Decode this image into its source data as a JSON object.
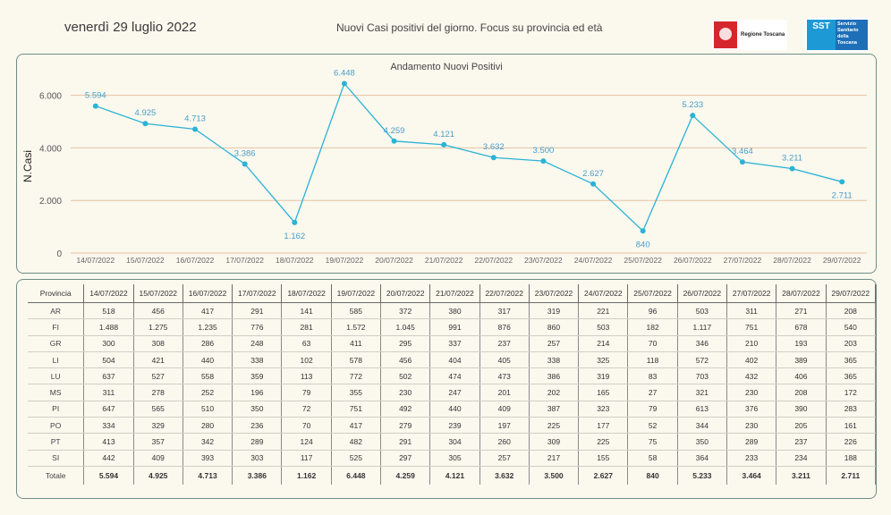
{
  "header": {
    "date": "venerdì 29 luglio 2022",
    "title": "Nuovi Casi positivi del giorno. Focus su provincia ed età",
    "logo_regione": "Regione Toscana",
    "logo_sst_abbr": "SST",
    "logo_sst_text": "Servizio Sanitario della Toscana"
  },
  "colors": {
    "line": "#2ab3d6",
    "grid": "#e6c3a3",
    "label": "#4a9fc8",
    "border": "#6d8f86"
  },
  "chart_data": {
    "type": "line",
    "title": "Andamento Nuovi Positivi",
    "xlabel": "",
    "ylabel": "N.Casi",
    "ylim": [
      0,
      6600
    ],
    "yticks": [
      0,
      2000,
      4000,
      6000
    ],
    "ytick_labels": [
      "0",
      "2.000",
      "4.000",
      "6.000"
    ],
    "grid": "horizontal",
    "categories": [
      "14/07/2022",
      "15/07/2022",
      "16/07/2022",
      "17/07/2022",
      "18/07/2022",
      "19/07/2022",
      "20/07/2022",
      "21/07/2022",
      "22/07/2022",
      "23/07/2022",
      "24/07/2022",
      "25/07/2022",
      "26/07/2022",
      "27/07/2022",
      "28/07/2022",
      "29/07/2022"
    ],
    "values": [
      5594,
      4925,
      4713,
      3386,
      1162,
      6448,
      4259,
      4121,
      3632,
      3500,
      2627,
      840,
      5233,
      3464,
      3211,
      2711
    ],
    "data_labels": [
      "5.594",
      "4.925",
      "4.713",
      "3.386",
      "1.162",
      "6.448",
      "4.259",
      "4.121",
      "3.632",
      "3.500",
      "2.627",
      "840",
      "5.233",
      "3.464",
      "3.211",
      "2.711"
    ],
    "label_below": [
      false,
      false,
      false,
      false,
      true,
      false,
      false,
      false,
      false,
      false,
      false,
      true,
      false,
      false,
      false,
      true
    ]
  },
  "table": {
    "corner": "Provincia",
    "columns": [
      "14/07/2022",
      "15/07/2022",
      "16/07/2022",
      "17/07/2022",
      "18/07/2022",
      "19/07/2022",
      "20/07/2022",
      "21/07/2022",
      "22/07/2022",
      "23/07/2022",
      "24/07/2022",
      "25/07/2022",
      "26/07/2022",
      "27/07/2022",
      "28/07/2022",
      "29/07/2022"
    ],
    "rows": [
      {
        "name": "AR",
        "cells": [
          "518",
          "456",
          "417",
          "291",
          "141",
          "585",
          "372",
          "380",
          "317",
          "319",
          "221",
          "96",
          "503",
          "311",
          "271",
          "208"
        ]
      },
      {
        "name": "FI",
        "cells": [
          "1.488",
          "1.275",
          "1.235",
          "776",
          "281",
          "1.572",
          "1.045",
          "991",
          "876",
          "860",
          "503",
          "182",
          "1.117",
          "751",
          "678",
          "540"
        ]
      },
      {
        "name": "GR",
        "cells": [
          "300",
          "308",
          "286",
          "248",
          "63",
          "411",
          "295",
          "337",
          "237",
          "257",
          "214",
          "70",
          "346",
          "210",
          "193",
          "203"
        ]
      },
      {
        "name": "LI",
        "cells": [
          "504",
          "421",
          "440",
          "338",
          "102",
          "578",
          "456",
          "404",
          "405",
          "338",
          "325",
          "118",
          "572",
          "402",
          "389",
          "365"
        ]
      },
      {
        "name": "LU",
        "cells": [
          "637",
          "527",
          "558",
          "359",
          "113",
          "772",
          "502",
          "474",
          "473",
          "386",
          "319",
          "83",
          "703",
          "432",
          "406",
          "365"
        ]
      },
      {
        "name": "MS",
        "cells": [
          "311",
          "278",
          "252",
          "196",
          "79",
          "355",
          "230",
          "247",
          "201",
          "202",
          "165",
          "27",
          "321",
          "230",
          "208",
          "172"
        ]
      },
      {
        "name": "PI",
        "cells": [
          "647",
          "565",
          "510",
          "350",
          "72",
          "751",
          "492",
          "440",
          "409",
          "387",
          "323",
          "79",
          "613",
          "376",
          "390",
          "283"
        ]
      },
      {
        "name": "PO",
        "cells": [
          "334",
          "329",
          "280",
          "236",
          "70",
          "417",
          "279",
          "239",
          "197",
          "225",
          "177",
          "52",
          "344",
          "230",
          "205",
          "161"
        ]
      },
      {
        "name": "PT",
        "cells": [
          "413",
          "357",
          "342",
          "289",
          "124",
          "482",
          "291",
          "304",
          "260",
          "309",
          "225",
          "75",
          "350",
          "289",
          "237",
          "226"
        ]
      },
      {
        "name": "SI",
        "cells": [
          "442",
          "409",
          "393",
          "303",
          "117",
          "525",
          "297",
          "305",
          "257",
          "217",
          "155",
          "58",
          "364",
          "233",
          "234",
          "188"
        ]
      }
    ],
    "total": {
      "name": "Totale",
      "cells": [
        "5.594",
        "4.925",
        "4.713",
        "3.386",
        "1.162",
        "6.448",
        "4.259",
        "4.121",
        "3.632",
        "3.500",
        "2.627",
        "840",
        "5.233",
        "3.464",
        "3.211",
        "2.711"
      ]
    }
  }
}
